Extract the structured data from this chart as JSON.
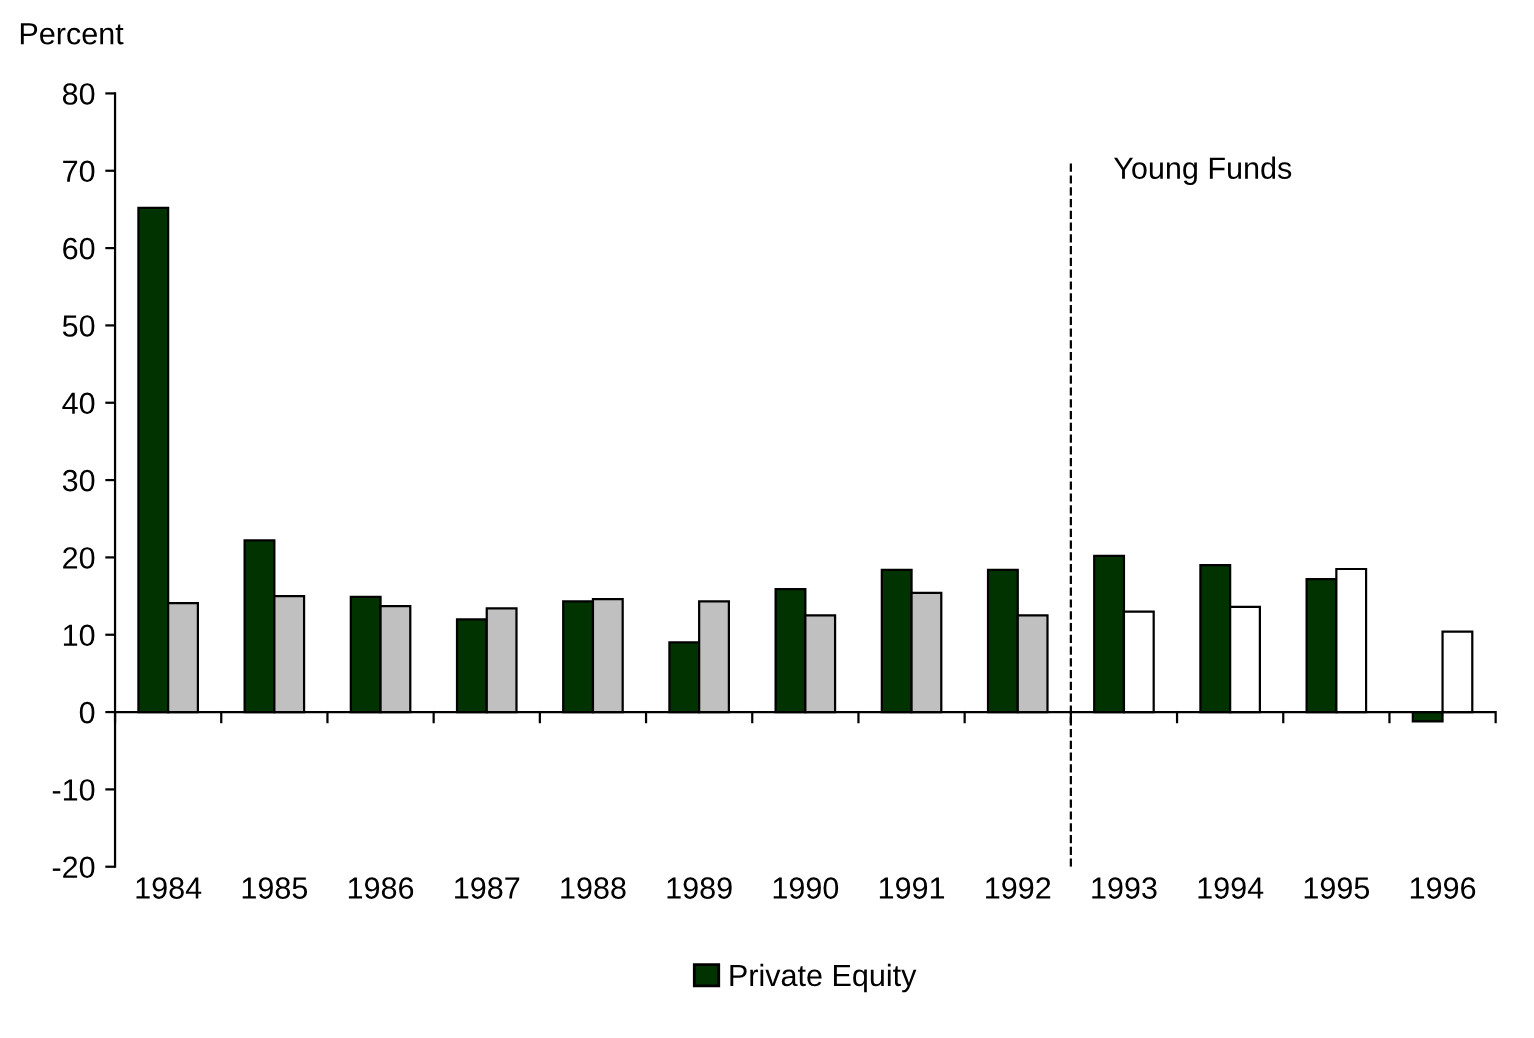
{
  "chart_data": {
    "type": "bar",
    "ylabel": "Percent",
    "categories": [
      "1984",
      "1985",
      "1986",
      "1987",
      "1988",
      "1989",
      "1990",
      "1991",
      "1992",
      "1993",
      "1994",
      "1995",
      "1996"
    ],
    "series": [
      {
        "name": "Private Equity",
        "color": "#003300",
        "values": [
          65.2,
          22.2,
          14.9,
          12.0,
          14.3,
          9.0,
          15.9,
          18.4,
          18.4,
          20.2,
          19.0,
          17.2,
          -1.2
        ]
      },
      {
        "color": "#c0c0c0",
        "colors": [
          "#c0c0c0",
          "#c0c0c0",
          "#c0c0c0",
          "#c0c0c0",
          "#c0c0c0",
          "#c0c0c0",
          "#c0c0c0",
          "#c0c0c0",
          "#c0c0c0",
          "#ffffff",
          "#ffffff",
          "#ffffff",
          "#ffffff"
        ],
        "values": [
          14.1,
          15.0,
          13.7,
          13.4,
          14.6,
          14.3,
          12.5,
          15.4,
          12.5,
          13.0,
          13.6,
          18.5,
          10.4
        ]
      }
    ],
    "ylim": [
      -20,
      80
    ],
    "yticks": [
      -20,
      -10,
      0,
      10,
      20,
      30,
      40,
      50,
      60,
      70,
      80
    ],
    "ref_lines": [
      {
        "axis": "x",
        "value": "1993",
        "label": "Young Funds",
        "color": "#000000",
        "line_style": "dashed"
      }
    ],
    "grid": false,
    "legend": "bottom"
  }
}
